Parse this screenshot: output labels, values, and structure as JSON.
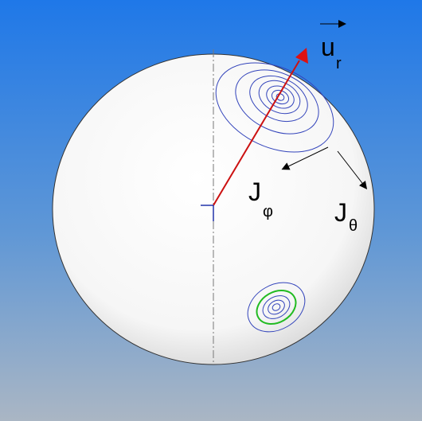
{
  "labels": [
    {
      "main": "u",
      "sub": "r"
    },
    {
      "main": "J",
      "sub": "φ"
    },
    {
      "main": "J",
      "sub": "θ"
    }
  ]
}
